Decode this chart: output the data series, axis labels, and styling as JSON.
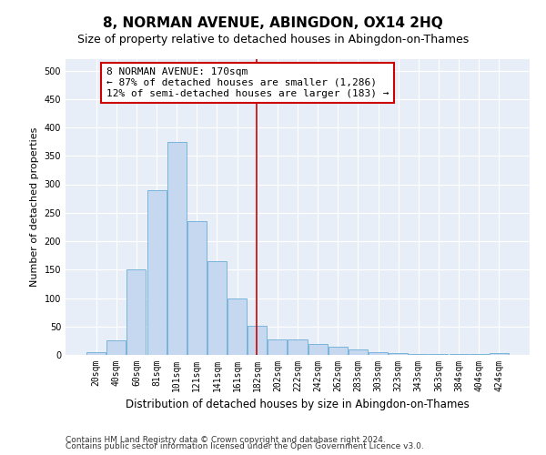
{
  "title": "8, NORMAN AVENUE, ABINGDON, OX14 2HQ",
  "subtitle": "Size of property relative to detached houses in Abingdon-on-Thames",
  "xlabel": "Distribution of detached houses by size in Abingdon-on-Thames",
  "ylabel": "Number of detached properties",
  "bins": [
    "20sqm",
    "40sqm",
    "60sqm",
    "81sqm",
    "101sqm",
    "121sqm",
    "141sqm",
    "161sqm",
    "182sqm",
    "202sqm",
    "222sqm",
    "242sqm",
    "262sqm",
    "283sqm",
    "303sqm",
    "323sqm",
    "343sqm",
    "363sqm",
    "384sqm",
    "404sqm",
    "424sqm"
  ],
  "values": [
    5,
    25,
    150,
    290,
    375,
    235,
    165,
    100,
    52,
    28,
    28,
    20,
    15,
    10,
    5,
    3,
    2,
    1,
    1,
    1,
    3
  ],
  "bar_color": "#c5d8f0",
  "bar_edge_color": "#6aaed6",
  "vline_x": 7.95,
  "vline_color": "#cc0000",
  "annotation_text": "8 NORMAN AVENUE: 170sqm\n← 87% of detached houses are smaller (1,286)\n12% of semi-detached houses are larger (183) →",
  "annotation_box_color": "#ffffff",
  "annotation_box_edge": "#cc0000",
  "ylim": [
    0,
    520
  ],
  "yticks": [
    0,
    50,
    100,
    150,
    200,
    250,
    300,
    350,
    400,
    450,
    500
  ],
  "background_color": "#e8eef7",
  "footer1": "Contains HM Land Registry data © Crown copyright and database right 2024.",
  "footer2": "Contains public sector information licensed under the Open Government Licence v3.0.",
  "title_fontsize": 11,
  "subtitle_fontsize": 9,
  "xlabel_fontsize": 8.5,
  "ylabel_fontsize": 8,
  "tick_fontsize": 7,
  "annotation_fontsize": 8,
  "footer_fontsize": 6.5
}
